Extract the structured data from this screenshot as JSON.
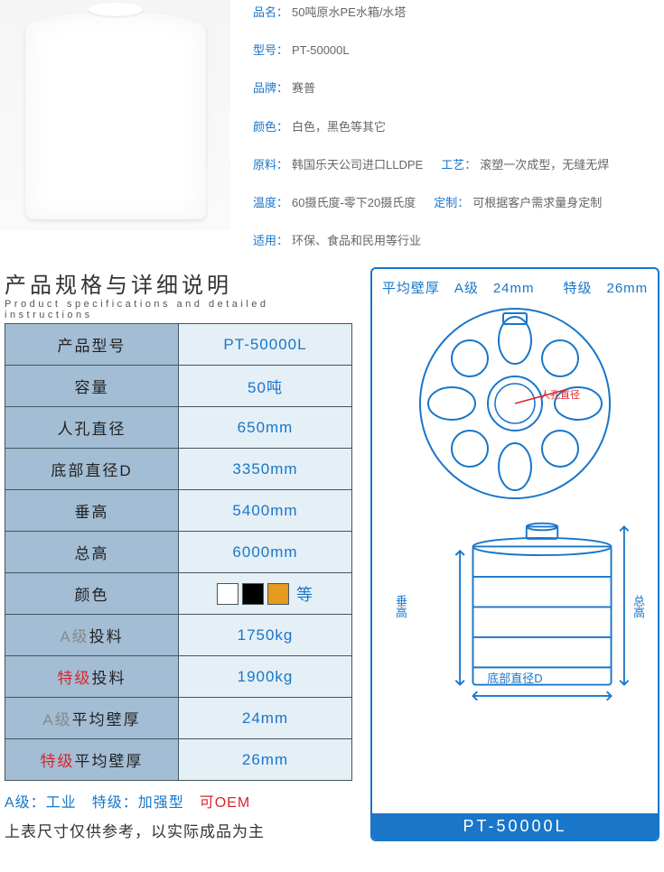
{
  "attributes": [
    [
      {
        "label": "品名：",
        "value": "50吨原水PE水箱/水塔"
      }
    ],
    [
      {
        "label": "型号：",
        "value": "PT-50000L"
      }
    ],
    [
      {
        "label": "品牌：",
        "value": "赛普"
      }
    ],
    [
      {
        "label": "颜色：",
        "value": "白色，黑色等其它"
      }
    ],
    [
      {
        "label": "原料：",
        "value": "韩国乐天公司进口LLDPE"
      },
      {
        "label": "工艺：",
        "value": "滚塑一次成型，无缝无焊"
      }
    ],
    [
      {
        "label": "温度：",
        "value": "60摄氏度-零下20摄氏度"
      },
      {
        "label": "定制：",
        "value": "可根据客户需求量身定制"
      }
    ],
    [
      {
        "label": "适用：",
        "value": "环保、食品和民用等行业"
      }
    ]
  ],
  "spec_title_cn": "产品规格与详细说明",
  "spec_title_en": "Product specifications and detailed instructions",
  "spec_table": [
    {
      "label": "产品型号",
      "value": "PT-50000L",
      "type": "text"
    },
    {
      "label": "容量",
      "value": "50吨",
      "type": "text"
    },
    {
      "label": "人孔直径",
      "value": "650mm",
      "type": "text"
    },
    {
      "label": "底部直径D",
      "value": "3350mm",
      "type": "text"
    },
    {
      "label": "垂高",
      "value": "5400mm",
      "type": "text"
    },
    {
      "label": "总高",
      "value": "6000mm",
      "type": "text"
    },
    {
      "label": "颜色",
      "type": "colors",
      "etc": "等"
    },
    {
      "label_prefix": "A级",
      "label_suffix": "投料",
      "prefix_class": "a-grade",
      "value": "1750kg",
      "type": "graded"
    },
    {
      "label_prefix": "特级",
      "label_suffix": "投料",
      "prefix_class": "s-grade",
      "value": "1900kg",
      "type": "graded"
    },
    {
      "label_prefix": "A级",
      "label_suffix": "平均壁厚",
      "prefix_class": "a-grade",
      "value": "24mm",
      "type": "graded"
    },
    {
      "label_prefix": "特级",
      "label_suffix": "平均壁厚",
      "prefix_class": "s-grade",
      "value": "26mm",
      "type": "graded"
    }
  ],
  "swatches": [
    "#ffffff",
    "#000000",
    "#e69a1f"
  ],
  "footer_note1_parts": [
    {
      "text": "A级：工业",
      "color": "#1976c9"
    },
    {
      "text": "　特级：加强型",
      "color": "#1976c9"
    },
    {
      "text": "　可OEM",
      "color": "#d8252e"
    }
  ],
  "footer_note2": "上表尺寸仅供参考，以实际成品为主",
  "diagram": {
    "header": "平均壁厚　A级　24mm　　特级　26mm",
    "hole_label": "人孔直径",
    "dim_left": "垂高",
    "dim_right": "总高",
    "dim_bottom": "底部直径D",
    "footer": "PT-50000L",
    "colors": {
      "stroke": "#1976c9",
      "fill": "#ffffff"
    }
  }
}
